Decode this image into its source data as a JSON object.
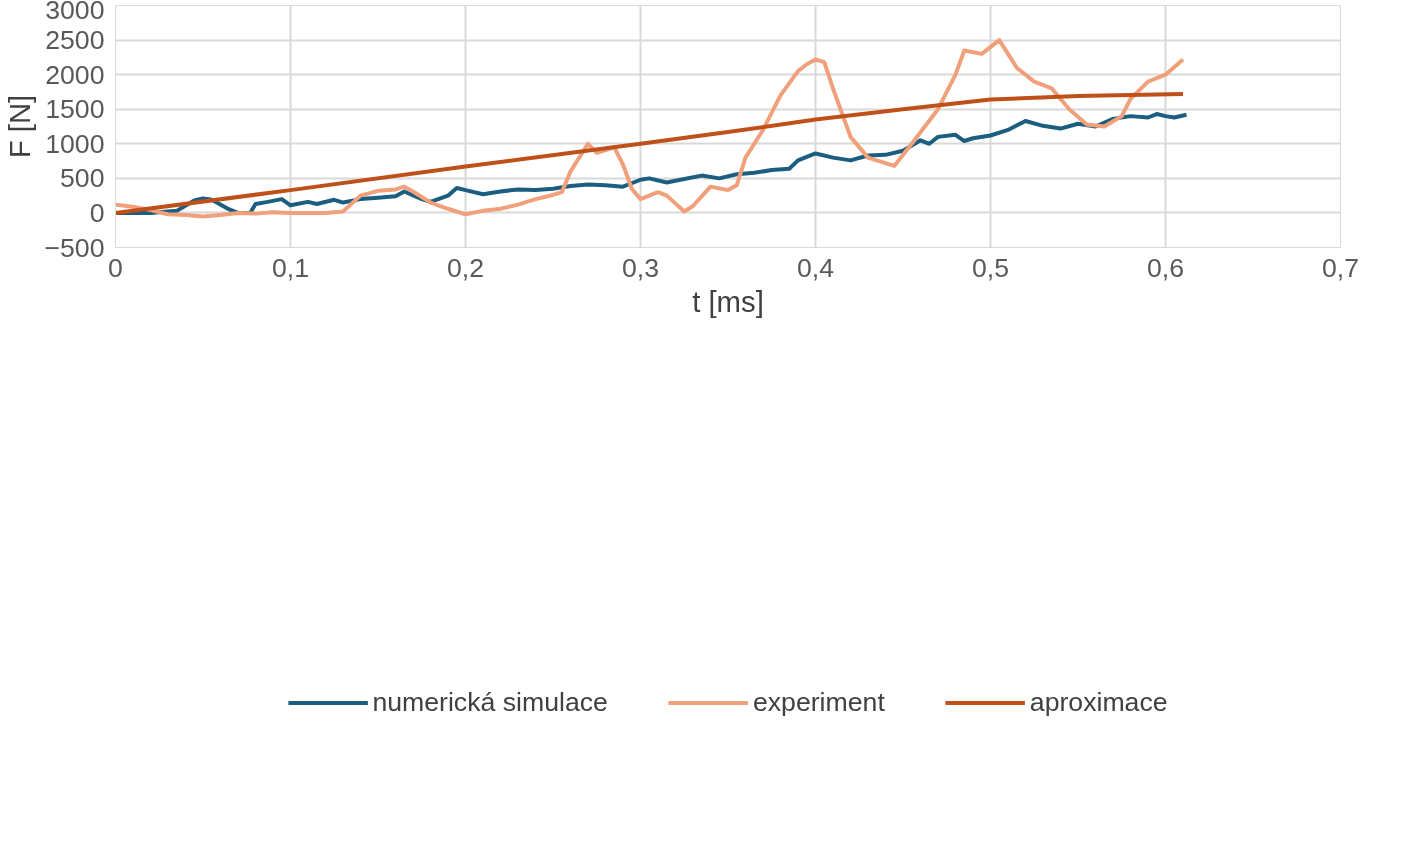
{
  "chart_data": {
    "type": "line",
    "xlabel": "t [ms]",
    "ylabel": "F [N]",
    "xlim": [
      0,
      0.7
    ],
    "xticks": [
      {
        "value": 0,
        "label": "0"
      },
      {
        "value": 0.1,
        "label": "0,1"
      },
      {
        "value": 0.2,
        "label": "0,2"
      },
      {
        "value": 0.3,
        "label": "0,3"
      },
      {
        "value": 0.4,
        "label": "0,4"
      },
      {
        "value": 0.5,
        "label": "0,5"
      },
      {
        "value": 0.6,
        "label": "0,6"
      },
      {
        "value": 0.7,
        "label": "0,7"
      }
    ],
    "ylim": [
      -500,
      3000
    ],
    "yticks": [
      -500,
      0,
      500,
      1000,
      1500,
      2000,
      2500,
      3000
    ],
    "grid": true,
    "legend": "bottom",
    "marker": "none",
    "line_style": "solid",
    "series": [
      {
        "name": "numerická simulace",
        "color": "#1b5e80",
        "x": [
          0,
          0.02,
          0.035,
          0.045,
          0.05,
          0.055,
          0.065,
          0.07,
          0.077,
          0.08,
          0.087,
          0.095,
          0.1,
          0.11,
          0.115,
          0.125,
          0.13,
          0.14,
          0.15,
          0.16,
          0.165,
          0.175,
          0.18,
          0.19,
          0.195,
          0.2,
          0.21,
          0.22,
          0.23,
          0.24,
          0.25,
          0.26,
          0.27,
          0.28,
          0.29,
          0.3,
          0.305,
          0.315,
          0.325,
          0.335,
          0.345,
          0.355,
          0.365,
          0.375,
          0.385,
          0.39,
          0.4,
          0.41,
          0.42,
          0.43,
          0.44,
          0.45,
          0.46,
          0.465,
          0.47,
          0.48,
          0.485,
          0.49,
          0.5,
          0.51,
          0.52,
          0.53,
          0.54,
          0.55,
          0.56,
          0.57,
          0.58,
          0.59,
          0.595,
          0.6,
          0.605,
          0.612
        ],
        "values": [
          0,
          0,
          30,
          180,
          210,
          190,
          50,
          0,
          0,
          130,
          160,
          200,
          110,
          160,
          130,
          190,
          150,
          200,
          220,
          240,
          310,
          200,
          160,
          250,
          360,
          330,
          270,
          310,
          340,
          330,
          350,
          390,
          410,
          400,
          380,
          480,
          500,
          440,
          490,
          540,
          500,
          560,
          580,
          620,
          640,
          760,
          860,
          800,
          760,
          830,
          840,
          900,
          1050,
          1000,
          1100,
          1130,
          1040,
          1080,
          1120,
          1200,
          1330,
          1260,
          1220,
          1290,
          1250,
          1360,
          1400,
          1380,
          1430,
          1400,
          1380,
          1420
        ]
      },
      {
        "name": "experiment",
        "color": "#f0a07a",
        "x": [
          0,
          0.01,
          0.02,
          0.03,
          0.04,
          0.05,
          0.06,
          0.07,
          0.08,
          0.09,
          0.1,
          0.11,
          0.12,
          0.13,
          0.14,
          0.15,
          0.16,
          0.165,
          0.17,
          0.18,
          0.19,
          0.2,
          0.21,
          0.22,
          0.23,
          0.24,
          0.25,
          0.255,
          0.26,
          0.27,
          0.275,
          0.285,
          0.29,
          0.295,
          0.3,
          0.31,
          0.315,
          0.325,
          0.33,
          0.34,
          0.35,
          0.355,
          0.36,
          0.37,
          0.38,
          0.39,
          0.395,
          0.4,
          0.405,
          0.41,
          0.42,
          0.43,
          0.44,
          0.445,
          0.455,
          0.47,
          0.48,
          0.485,
          0.495,
          0.505,
          0.51,
          0.515,
          0.525,
          0.535,
          0.545,
          0.555,
          0.565,
          0.575,
          0.58,
          0.59,
          0.6,
          0.61
        ],
        "values": [
          120,
          90,
          40,
          -20,
          -30,
          -50,
          -30,
          0,
          -10,
          10,
          0,
          0,
          0,
          20,
          250,
          320,
          340,
          380,
          310,
          150,
          60,
          -20,
          30,
          60,
          120,
          200,
          260,
          300,
          600,
          1000,
          870,
          950,
          700,
          350,
          200,
          300,
          250,
          20,
          100,
          380,
          330,
          400,
          800,
          1200,
          1700,
          2050,
          2150,
          2220,
          2180,
          1800,
          1100,
          800,
          720,
          680,
          1000,
          1500,
          2000,
          2350,
          2300,
          2500,
          2300,
          2100,
          1900,
          1800,
          1500,
          1280,
          1250,
          1400,
          1650,
          1900,
          2000,
          2220
        ]
      },
      {
        "name": "aproximace",
        "color": "#c0501a",
        "x": [
          0,
          0.1,
          0.2,
          0.3,
          0.35,
          0.4,
          0.45,
          0.5,
          0.55,
          0.61
        ],
        "values": [
          0,
          330,
          670,
          1000,
          1170,
          1350,
          1500,
          1640,
          1690,
          1720
        ]
      }
    ]
  }
}
